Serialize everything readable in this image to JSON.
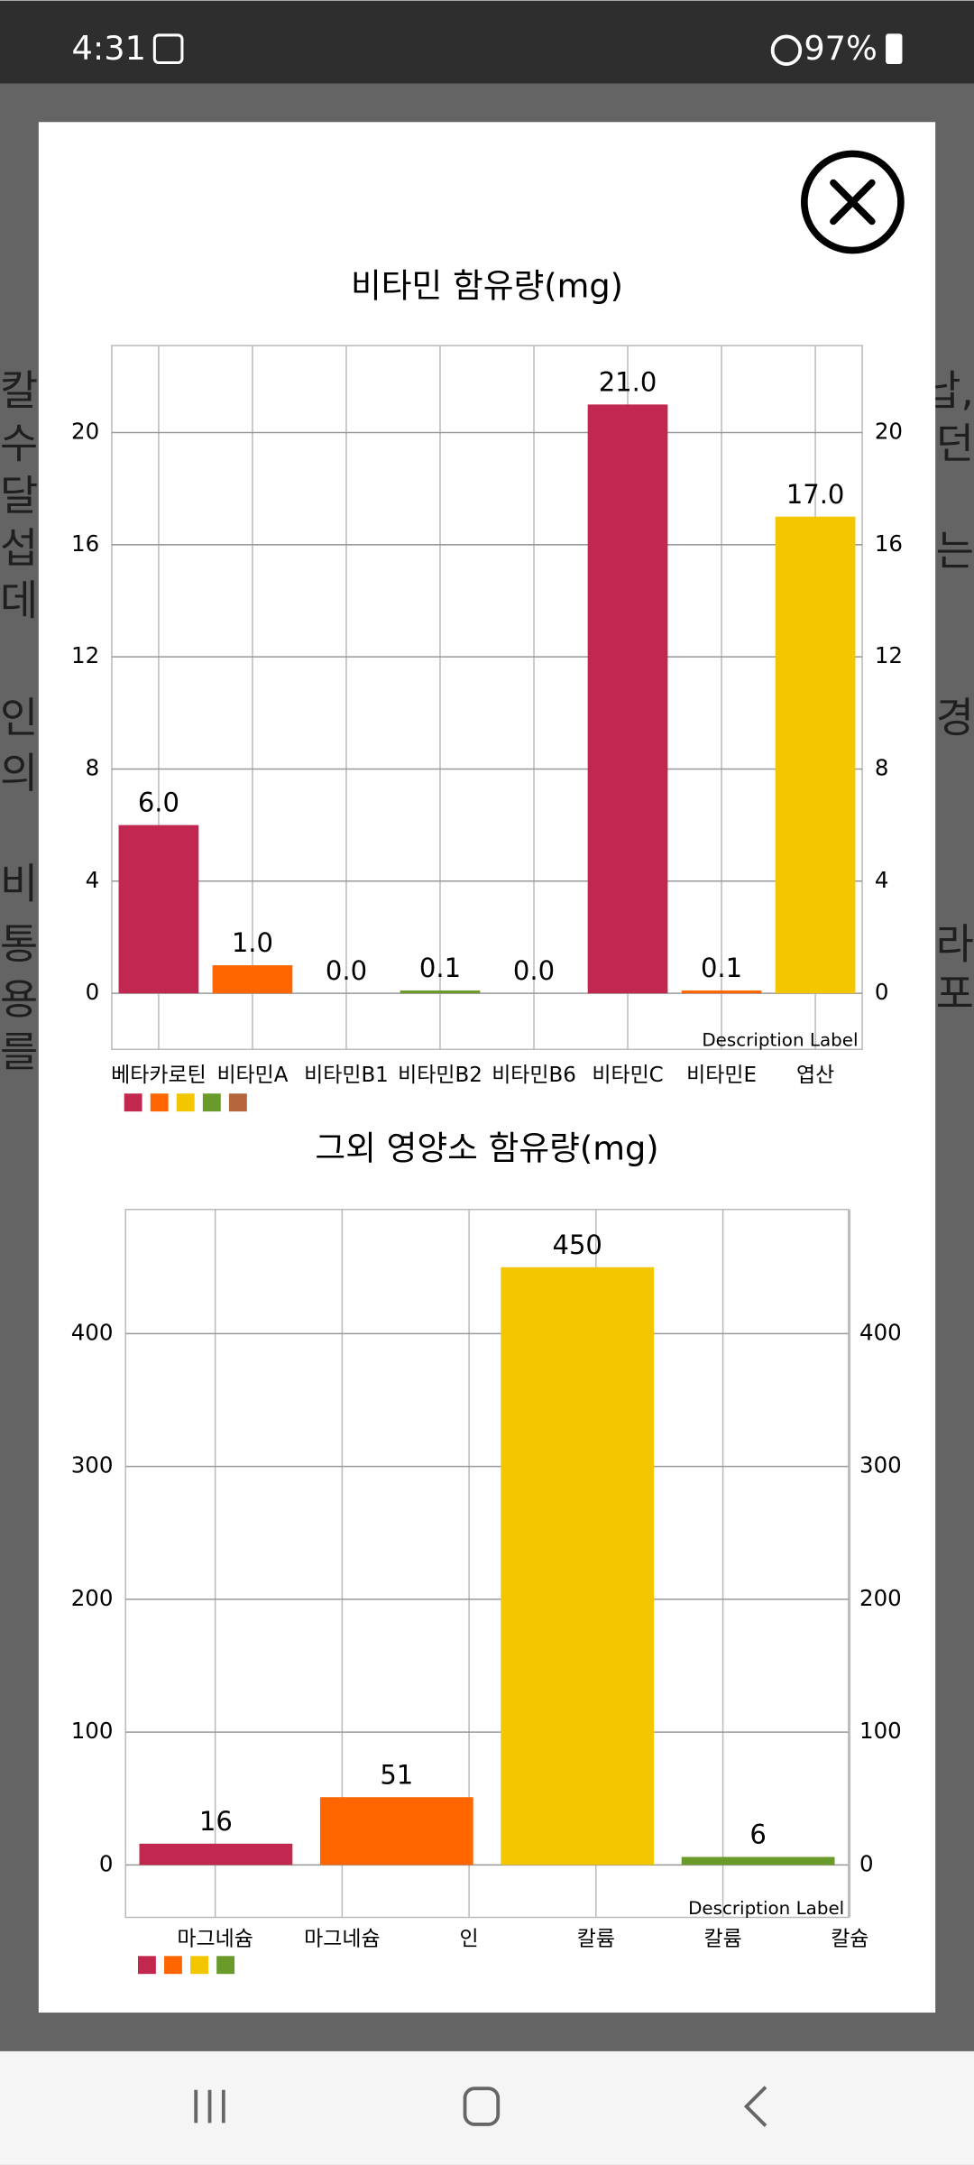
{
  "status_bar": {
    "time": "4:31",
    "battery": "97%"
  },
  "background_text": {
    "left": [
      "칼",
      "수",
      "달",
      "섭",
      "데",
      "인",
      "의",
      "비",
      "통",
      "용",
      "를"
    ],
    "right": [
      "납,",
      "던",
      "는",
      "경",
      "라",
      "포"
    ]
  },
  "chart_data": [
    {
      "type": "bar",
      "title": "비타민 함유량(mg)",
      "description": "Description Label",
      "categories": [
        "베타카로틴",
        "비타민A",
        "비타민B1",
        "비타민B2",
        "비타민B6",
        "비타민C",
        "비타민E",
        "엽산"
      ],
      "values": [
        6,
        1,
        0,
        0.1,
        0,
        21,
        0.1,
        17
      ],
      "value_labels": [
        "6.0",
        "1.0",
        "0.0",
        "0.1",
        "0.0",
        "21.0",
        "0.1",
        "17.0"
      ],
      "colors": [
        "#c2274f",
        "#ff6600",
        "#f4c600",
        "#6a9a2a",
        "#b3673a"
      ],
      "ylim": [
        -2,
        23.1
      ],
      "yticks": [
        0,
        4,
        8,
        12,
        16,
        20
      ],
      "grid": true
    },
    {
      "type": "bar",
      "title": "그외 영양소 함유량(mg)",
      "description": "Description Label",
      "xtick_labels": [
        "마그네슘",
        "마그네슘",
        "인",
        "칼륨",
        "칼륨",
        "칼슘"
      ],
      "values": [
        16,
        51,
        450,
        6
      ],
      "colors": [
        "#c2274f",
        "#ff6600",
        "#f4c600",
        "#6a9a2a"
      ],
      "ylim": [
        -39.5,
        493.5
      ],
      "yticks": [
        0,
        100,
        200,
        300,
        400
      ],
      "grid": true
    }
  ]
}
